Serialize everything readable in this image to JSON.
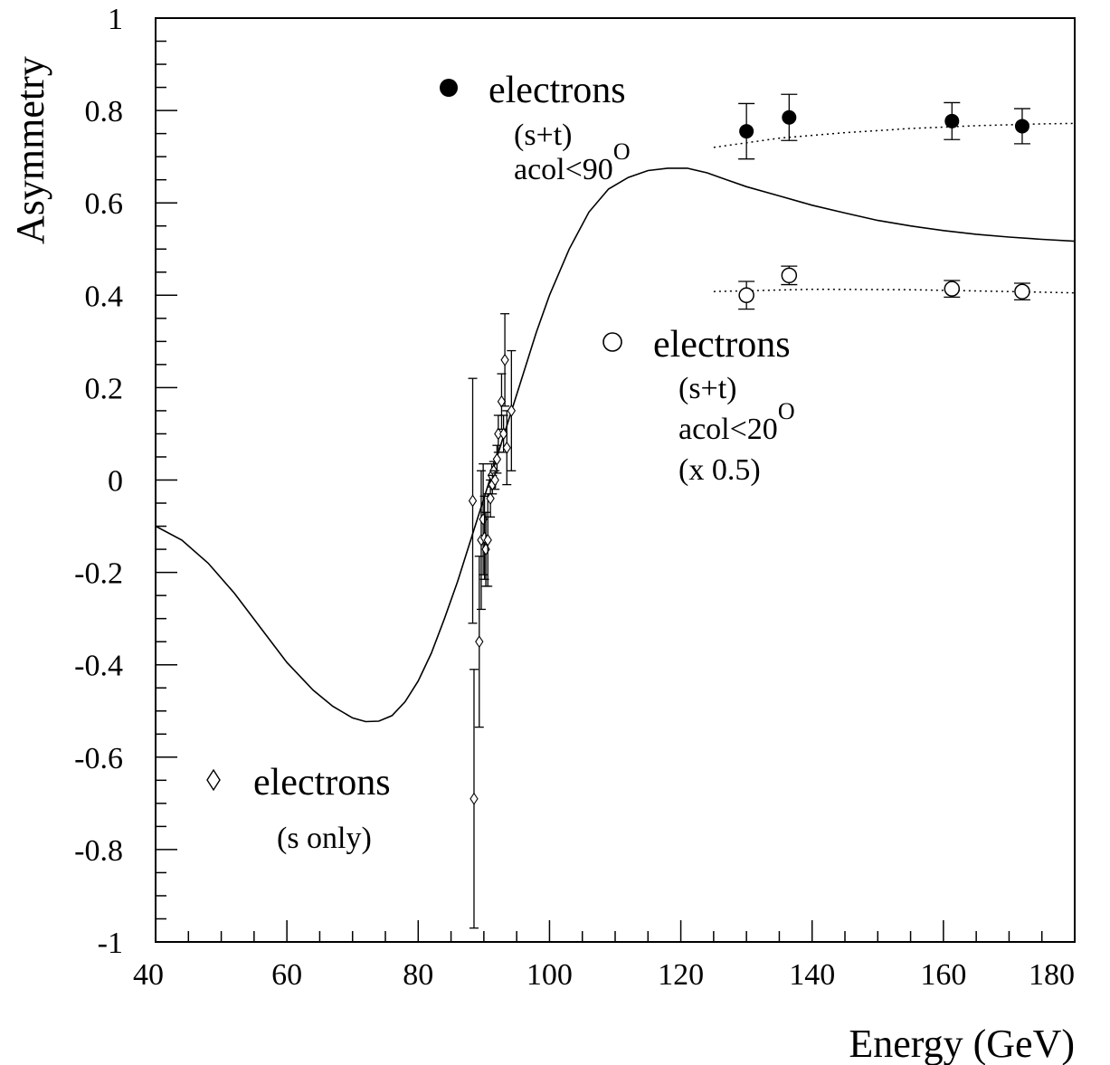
{
  "chart_data": {
    "type": "scatter",
    "xlabel": "Energy (GeV)",
    "ylabel": "Asymmetry",
    "xlim": [
      40,
      180
    ],
    "ylim": [
      -1,
      1
    ],
    "x_ticks": [
      "40",
      "60",
      "80",
      "100",
      "120",
      "140",
      "160",
      "180"
    ],
    "y_ticks": [
      "1",
      "0.8",
      "0.6",
      "0.4",
      "0.2",
      "0",
      "-0.2",
      "-0.4",
      "-0.6",
      "-0.8",
      "-1"
    ],
    "grid": false,
    "series": [
      {
        "name": "electrons",
        "marker": "filled-circle",
        "legend_lines": [
          "(s+t)",
          "acol<90"
        ],
        "legend_superscript": "O",
        "points": [
          {
            "x": 130.0,
            "y": 0.755,
            "err": 0.06
          },
          {
            "x": 136.5,
            "y": 0.785,
            "err": 0.05
          },
          {
            "x": 161.3,
            "y": 0.777,
            "err": 0.04
          },
          {
            "x": 172.0,
            "y": 0.766,
            "err": 0.038
          }
        ]
      },
      {
        "name": "electrons",
        "marker": "open-circle",
        "legend_lines": [
          "(s+t)",
          "acol<20",
          "(x 0.5)"
        ],
        "legend_superscript": "O",
        "points": [
          {
            "x": 130.0,
            "y": 0.4,
            "err": 0.03
          },
          {
            "x": 136.5,
            "y": 0.443,
            "err": 0.02
          },
          {
            "x": 161.3,
            "y": 0.414,
            "err": 0.018
          },
          {
            "x": 172.0,
            "y": 0.408,
            "err": 0.018
          }
        ]
      },
      {
        "name": "electrons",
        "marker": "open-diamond",
        "legend_lines": [
          "(s only)"
        ],
        "points": [
          {
            "x": 88.3,
            "y": -0.045,
            "err": 0.265
          },
          {
            "x": 88.5,
            "y": -0.69,
            "err": 0.28
          },
          {
            "x": 89.3,
            "y": -0.35,
            "err": 0.185
          },
          {
            "x": 89.6,
            "y": -0.13,
            "err": 0.15
          },
          {
            "x": 89.9,
            "y": -0.085,
            "err": 0.12
          },
          {
            "x": 90.1,
            "y": -0.125,
            "err": 0.09
          },
          {
            "x": 90.3,
            "y": -0.15,
            "err": 0.08
          },
          {
            "x": 90.6,
            "y": -0.13,
            "err": 0.1
          },
          {
            "x": 91.0,
            "y": -0.04,
            "err": 0.04
          },
          {
            "x": 91.2,
            "y": 0.01,
            "err": 0.025
          },
          {
            "x": 91.3,
            "y": -0.01,
            "err": 0.02
          },
          {
            "x": 91.5,
            "y": 0.02,
            "err": 0.02
          },
          {
            "x": 91.7,
            "y": 0.0,
            "err": 0.02
          },
          {
            "x": 92.0,
            "y": 0.045,
            "err": 0.03
          },
          {
            "x": 92.2,
            "y": 0.1,
            "err": 0.04
          },
          {
            "x": 92.7,
            "y": 0.17,
            "err": 0.06
          },
          {
            "x": 93.0,
            "y": 0.1,
            "err": 0.04
          },
          {
            "x": 93.2,
            "y": 0.26,
            "err": 0.1
          },
          {
            "x": 93.5,
            "y": 0.07,
            "err": 0.08
          },
          {
            "x": 94.2,
            "y": 0.15,
            "err": 0.13
          }
        ]
      },
      {
        "name": "",
        "style": "solid-line",
        "points": [
          [
            40,
            -0.1
          ],
          [
            44,
            -0.13
          ],
          [
            48,
            -0.18
          ],
          [
            52,
            -0.245
          ],
          [
            56,
            -0.32
          ],
          [
            60,
            -0.395
          ],
          [
            64,
            -0.455
          ],
          [
            67,
            -0.49
          ],
          [
            70,
            -0.515
          ],
          [
            72,
            -0.523
          ],
          [
            74,
            -0.522
          ],
          [
            76,
            -0.51
          ],
          [
            78,
            -0.48
          ],
          [
            80,
            -0.435
          ],
          [
            82,
            -0.375
          ],
          [
            84,
            -0.3
          ],
          [
            86,
            -0.22
          ],
          [
            88,
            -0.13
          ],
          [
            90,
            -0.04
          ],
          [
            92,
            0.05
          ],
          [
            94,
            0.14
          ],
          [
            96,
            0.23
          ],
          [
            98,
            0.32
          ],
          [
            100,
            0.4
          ],
          [
            103,
            0.5
          ],
          [
            106,
            0.58
          ],
          [
            109,
            0.63
          ],
          [
            112,
            0.655
          ],
          [
            115,
            0.67
          ],
          [
            118,
            0.675
          ],
          [
            121,
            0.675
          ],
          [
            124,
            0.665
          ],
          [
            127,
            0.65
          ],
          [
            130,
            0.635
          ],
          [
            135,
            0.615
          ],
          [
            140,
            0.595
          ],
          [
            145,
            0.578
          ],
          [
            150,
            0.562
          ],
          [
            155,
            0.55
          ],
          [
            160,
            0.54
          ],
          [
            165,
            0.532
          ],
          [
            170,
            0.526
          ],
          [
            175,
            0.521
          ],
          [
            180,
            0.517
          ]
        ]
      },
      {
        "name": "",
        "style": "dotted-line",
        "points": [
          [
            125,
            0.72
          ],
          [
            135,
            0.74
          ],
          [
            145,
            0.752
          ],
          [
            155,
            0.761
          ],
          [
            165,
            0.767
          ],
          [
            175,
            0.771
          ],
          [
            180,
            0.772
          ]
        ]
      },
      {
        "name": "",
        "style": "dotted-line",
        "points": [
          [
            125,
            0.408
          ],
          [
            140,
            0.413
          ],
          [
            155,
            0.412
          ],
          [
            170,
            0.408
          ],
          [
            180,
            0.405
          ]
        ]
      }
    ]
  }
}
